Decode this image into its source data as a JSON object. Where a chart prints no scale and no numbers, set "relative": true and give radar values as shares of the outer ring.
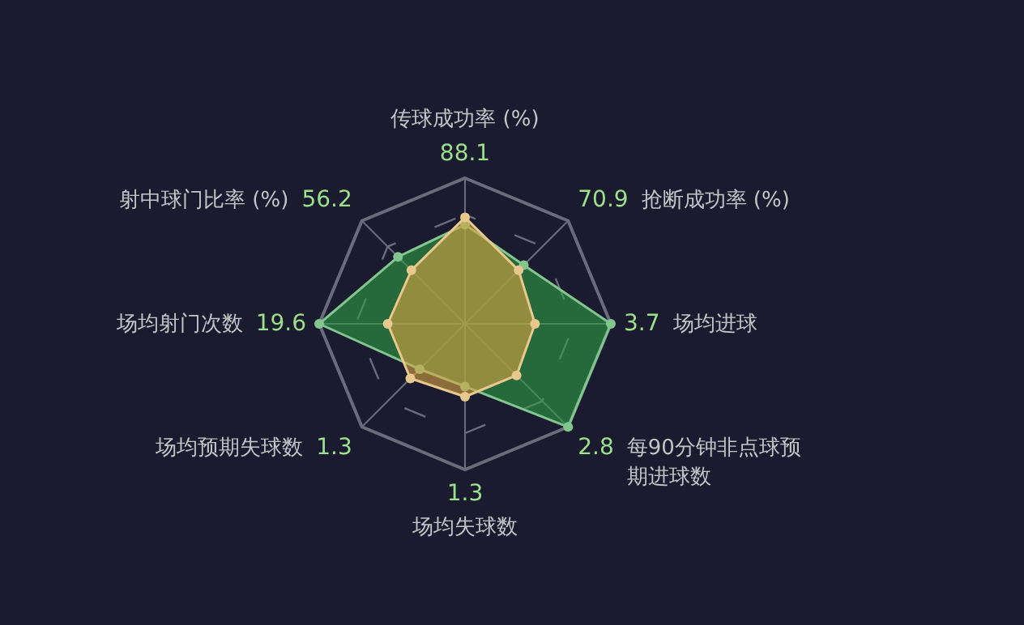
{
  "chart_data": {
    "type": "radar",
    "relative": true,
    "marker": "circle",
    "categories": [
      "传球成功率 (%)",
      "抢断成功率 (%)",
      "场均进球",
      "每90分钟非点球预期进球数",
      "场均失球数",
      "场均预期失球数",
      "场均射门次数",
      "射中球门比率 (%)"
    ],
    "annotations": [
      "88.1",
      "70.9",
      "3.7",
      "2.8",
      "1.3",
      "1.3",
      "19.6",
      "56.2"
    ],
    "series": [
      {
        "color": "#2f9e44",
        "values": [
          0.68,
          0.57,
          1,
          1,
          0.43,
          0.44,
          1,
          0.65
        ]
      },
      {
        "color": "#d9a441",
        "values": [
          0.73,
          0.52,
          0.48,
          0.5,
          0.5,
          0.53,
          0.53,
          0.52
        ]
      }
    ]
  }
}
